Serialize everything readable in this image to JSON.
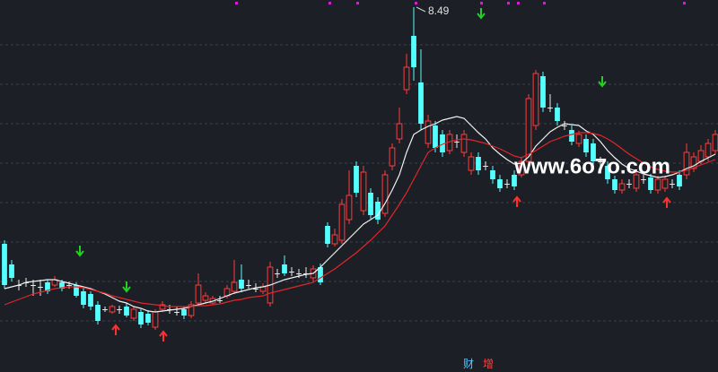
{
  "chart_data": {
    "type": "candlestick",
    "ylim": [
      4.42,
      8.57
    ],
    "up_color": "#ff3c3c",
    "down_color": "#54ffff",
    "flat_color": "#e8e8e8",
    "open": [
      5.85,
      5.62,
      5.39,
      5.42,
      5.39,
      5.37,
      5.42,
      5.39,
      5.42,
      5.39,
      5.39,
      5.32,
      5.29,
      5.17,
      5.12,
      5.09,
      5.12,
      5.15,
      5.02,
      5.09,
      5.07,
      4.92,
      5.12,
      5.12,
      5.09,
      5.12,
      5.05,
      5.19,
      5.22,
      5.19,
      5.22,
      5.27,
      5.32,
      5.45,
      5.39,
      5.35,
      5.32,
      5.19,
      5.52,
      5.62,
      5.54,
      5.52,
      5.52,
      5.47,
      5.59,
      6.05,
      5.85,
      5.89,
      6.12,
      6.72,
      6.22,
      6.42,
      6.32,
      6.19,
      6.72,
      7.02,
      7.57,
      8.17,
      7.65,
      6.97,
      7.17,
      7.07,
      6.89,
      6.99,
      6.87,
      6.67,
      6.82,
      6.72,
      6.67,
      6.57,
      6.52,
      6.62,
      6.62,
      6.77,
      7.17,
      7.72,
      7.37,
      7.37,
      7.17,
      7.12,
      6.97,
      7.02,
      6.97,
      6.77,
      6.72,
      6.57,
      6.45,
      6.52,
      6.47,
      6.57,
      6.59,
      6.45,
      6.47,
      6.52,
      6.62,
      6.62,
      6.69,
      6.77,
      6.82,
      6.89
    ],
    "high": [
      5.89,
      5.67,
      5.45,
      5.47,
      5.45,
      5.45,
      5.45,
      5.49,
      5.45,
      5.43,
      5.42,
      5.37,
      5.32,
      5.21,
      5.15,
      5.17,
      5.16,
      5.19,
      5.15,
      5.12,
      5.11,
      5.12,
      5.21,
      5.17,
      5.15,
      5.15,
      5.21,
      5.52,
      5.31,
      5.27,
      5.27,
      5.39,
      5.67,
      5.62,
      5.45,
      5.41,
      5.41,
      5.65,
      5.57,
      5.72,
      5.59,
      5.57,
      5.59,
      5.61,
      5.63,
      6.09,
      6.02,
      6.35,
      6.67,
      6.77,
      6.72,
      6.47,
      6.37,
      6.67,
      6.97,
      7.37,
      7.97,
      8.49,
      8.02,
      7.29,
      7.22,
      7.12,
      7.12,
      7.07,
      7.12,
      6.87,
      6.87,
      6.77,
      6.72,
      6.62,
      6.57,
      6.67,
      6.82,
      7.52,
      7.79,
      7.77,
      7.52,
      7.42,
      7.22,
      7.17,
      7.11,
      7.07,
      7.02,
      6.82,
      6.77,
      6.61,
      6.57,
      6.57,
      6.67,
      6.62,
      6.63,
      6.61,
      6.61,
      6.57,
      6.67,
      6.97,
      6.87,
      6.95,
      7.02,
      7.12
    ],
    "low": [
      5.35,
      5.43,
      5.33,
      5.37,
      5.27,
      5.27,
      5.29,
      5.37,
      5.32,
      5.35,
      5.25,
      5.13,
      5.11,
      4.95,
      5.09,
      5.07,
      5.07,
      5.03,
      4.99,
      4.91,
      4.94,
      4.89,
      5.09,
      5.07,
      5.05,
      5.01,
      5.02,
      5.17,
      5.19,
      5.17,
      5.19,
      5.24,
      5.29,
      5.31,
      5.35,
      5.31,
      5.29,
      5.15,
      5.47,
      5.49,
      5.49,
      5.47,
      5.47,
      5.43,
      5.39,
      5.81,
      5.82,
      5.85,
      6.07,
      6.37,
      6.17,
      6.13,
      6.07,
      6.15,
      6.67,
      6.97,
      7.52,
      7.67,
      7.12,
      6.92,
      6.87,
      6.82,
      6.85,
      6.92,
      6.82,
      6.62,
      6.62,
      6.67,
      6.52,
      6.43,
      6.47,
      6.45,
      6.59,
      6.72,
      7.12,
      7.32,
      7.32,
      7.17,
      7.12,
      6.95,
      6.93,
      6.82,
      6.72,
      6.72,
      6.52,
      6.41,
      6.41,
      6.47,
      6.43,
      6.52,
      6.41,
      6.41,
      6.43,
      6.47,
      6.45,
      6.57,
      6.65,
      6.73,
      6.77,
      6.85
    ],
    "close": [
      5.39,
      5.47,
      5.39,
      5.42,
      5.39,
      5.37,
      5.32,
      5.45,
      5.35,
      5.39,
      5.27,
      5.17,
      5.15,
      4.99,
      5.12,
      5.15,
      5.12,
      5.05,
      5.12,
      4.95,
      4.97,
      5.09,
      5.17,
      5.12,
      5.09,
      5.05,
      5.17,
      5.39,
      5.27,
      5.24,
      5.22,
      5.35,
      5.42,
      5.35,
      5.39,
      5.35,
      5.37,
      5.59,
      5.52,
      5.52,
      5.54,
      5.52,
      5.52,
      5.57,
      5.42,
      5.85,
      5.95,
      6.29,
      6.39,
      6.42,
      6.65,
      6.17,
      6.12,
      6.62,
      6.92,
      7.19,
      7.82,
      7.82,
      7.19,
      7.22,
      6.92,
      6.87,
      7.07,
      6.99,
      7.07,
      6.82,
      6.67,
      6.72,
      6.57,
      6.47,
      6.52,
      6.49,
      6.77,
      7.47,
      7.75,
      7.37,
      7.37,
      7.22,
      7.17,
      6.99,
      7.07,
      6.87,
      6.77,
      6.77,
      6.57,
      6.45,
      6.52,
      6.52,
      6.62,
      6.57,
      6.45,
      6.57,
      6.57,
      6.52,
      6.49,
      6.87,
      6.82,
      6.89,
      6.97,
      7.07
    ],
    "lines": [
      {
        "color": "#f0f0f0",
        "values": [
          5.35,
          5.37,
          5.39,
          5.42,
          5.43,
          5.44,
          5.45,
          5.45,
          5.43,
          5.41,
          5.39,
          5.37,
          5.35,
          5.32,
          5.29,
          5.25,
          5.21,
          5.19,
          5.15,
          5.13,
          5.1,
          5.09,
          5.1,
          5.11,
          5.12,
          5.13,
          5.15,
          5.17,
          5.19,
          5.21,
          5.24,
          5.27,
          5.3,
          5.32,
          5.34,
          5.36,
          5.37,
          5.39,
          5.42,
          5.45,
          5.47,
          5.49,
          5.51,
          5.52,
          5.59,
          5.67,
          5.75,
          5.83,
          5.91,
          5.99,
          6.07,
          6.12,
          6.17,
          6.3,
          6.45,
          6.62,
          6.87,
          7.07,
          7.12,
          7.16,
          7.19,
          7.23,
          7.25,
          7.27,
          7.25,
          7.17,
          7.09,
          7.02,
          6.92,
          6.85,
          6.79,
          6.74,
          6.75,
          6.82,
          6.94,
          7.02,
          7.1,
          7.15,
          7.19,
          7.18,
          7.17,
          7.11,
          7.07,
          6.99,
          6.89,
          6.81,
          6.74,
          6.69,
          6.66,
          6.63,
          6.61,
          6.59,
          6.6,
          6.62,
          6.65,
          6.69,
          6.72,
          6.77,
          6.81,
          6.85
        ]
      },
      {
        "color": "#e0262a",
        "values": [
          5.17,
          5.2,
          5.23,
          5.26,
          5.29,
          5.31,
          5.33,
          5.35,
          5.36,
          5.37,
          5.37,
          5.36,
          5.34,
          5.32,
          5.3,
          5.27,
          5.25,
          5.23,
          5.21,
          5.19,
          5.18,
          5.17,
          5.16,
          5.15,
          5.15,
          5.15,
          5.15,
          5.16,
          5.16,
          5.17,
          5.18,
          5.2,
          5.22,
          5.23,
          5.25,
          5.26,
          5.27,
          5.3,
          5.32,
          5.34,
          5.36,
          5.38,
          5.4,
          5.42,
          5.47,
          5.52,
          5.57,
          5.63,
          5.69,
          5.75,
          5.82,
          5.89,
          5.97,
          6.05,
          6.17,
          6.29,
          6.42,
          6.57,
          6.72,
          6.87,
          6.92,
          6.96,
          6.99,
          7.01,
          7.02,
          7.01,
          6.99,
          6.97,
          6.94,
          6.91,
          6.87,
          6.83,
          6.81,
          6.85,
          6.89,
          6.94,
          6.99,
          7.02,
          7.05,
          7.07,
          7.09,
          7.09,
          7.08,
          7.06,
          7.02,
          6.97,
          6.91,
          6.85,
          6.8,
          6.75,
          6.71,
          6.68,
          6.66,
          6.65,
          6.65,
          6.67,
          6.7,
          6.73,
          6.76,
          6.79
        ]
      }
    ]
  },
  "watermark": "www.6o7o.com",
  "footer_labels": [
    "财",
    "增"
  ]
}
